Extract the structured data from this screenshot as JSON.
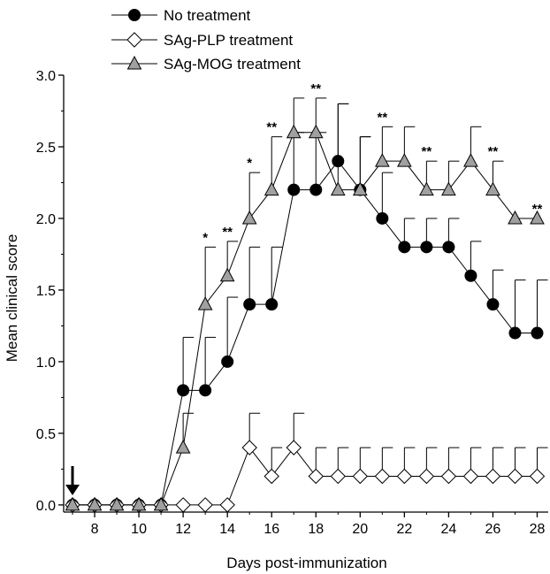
{
  "chart_data": {
    "type": "line",
    "xlabel": "Days post-immunization",
    "ylabel": "Mean clinical score",
    "xlim": [
      6.6,
      28.5
    ],
    "ylim": [
      -0.05,
      3.0
    ],
    "xticks": [
      8,
      10,
      12,
      14,
      16,
      18,
      20,
      22,
      24,
      26,
      28
    ],
    "xtick_labels": [
      "8",
      "10",
      "12",
      "14",
      "16",
      "18",
      "20",
      "22",
      "24",
      "26",
      "28"
    ],
    "yticks": [
      0.0,
      0.5,
      1.0,
      1.5,
      2.0,
      2.5,
      3.0
    ],
    "ytick_labels": [
      "0.0",
      "0.5",
      "1.0",
      "1.5",
      "2.0",
      "2.5",
      "3.0"
    ],
    "grid": false,
    "legend_position": "top-left",
    "treatment_arrow_day": 7,
    "x": [
      7,
      8,
      9,
      10,
      11,
      12,
      13,
      14,
      15,
      16,
      17,
      18,
      19,
      20,
      21,
      22,
      23,
      24,
      25,
      26,
      27,
      28
    ],
    "series": [
      {
        "name": "No treatment",
        "marker": "circle",
        "color": "#000000",
        "values": [
          0,
          0,
          0,
          0,
          0,
          0.8,
          0.8,
          1.0,
          1.4,
          1.4,
          2.2,
          2.2,
          2.4,
          2.2,
          2.0,
          1.8,
          1.8,
          1.8,
          1.6,
          1.4,
          1.2,
          1.2
        ],
        "errors": [
          0,
          0,
          0,
          0,
          0,
          0.37,
          0.37,
          0.45,
          0.4,
          0.4,
          0.4,
          0.4,
          0.4,
          0.37,
          0.32,
          0.2,
          0.2,
          0.2,
          0.24,
          0.24,
          0.37,
          0.37
        ]
      },
      {
        "name": "SAg-PLP treatment",
        "marker": "diamond",
        "color": "#ffffff",
        "values": [
          0,
          0,
          0,
          0,
          0,
          0,
          0,
          0,
          0.4,
          0.2,
          0.4,
          0.2,
          0.2,
          0.2,
          0.2,
          0.2,
          0.2,
          0.2,
          0.2,
          0.2,
          0.2,
          0.2
        ],
        "errors": [
          0,
          0,
          0,
          0,
          0,
          0,
          0,
          0,
          0.24,
          0.2,
          0.24,
          0.2,
          0.2,
          0.2,
          0.2,
          0.2,
          0.2,
          0.2,
          0.2,
          0.2,
          0.2,
          0.2
        ]
      },
      {
        "name": "SAg-MOG treatment",
        "marker": "triangle",
        "color": "#a0a0a0",
        "values": [
          0,
          0,
          0,
          0,
          0,
          0.4,
          1.4,
          1.6,
          2.0,
          2.2,
          2.6,
          2.6,
          2.2,
          2.2,
          2.4,
          2.4,
          2.2,
          2.2,
          2.4,
          2.2,
          2.0,
          2.0
        ],
        "errors": [
          0,
          0,
          0,
          0,
          0,
          0.24,
          0.4,
          0.24,
          0.32,
          0.37,
          0.24,
          0.24,
          0.6,
          0.37,
          0.24,
          0.24,
          0.2,
          0.2,
          0.24,
          0.2,
          0,
          0
        ]
      }
    ],
    "annotations": [
      {
        "day": 13,
        "text": "*"
      },
      {
        "day": 14,
        "text": "**"
      },
      {
        "day": 15,
        "text": "*"
      },
      {
        "day": 16,
        "text": "**"
      },
      {
        "day": 18,
        "text": "**"
      },
      {
        "day": 21,
        "text": "**"
      },
      {
        "day": 23,
        "text": "**"
      },
      {
        "day": 26,
        "text": "**"
      },
      {
        "day": 28,
        "text": "**"
      }
    ]
  }
}
